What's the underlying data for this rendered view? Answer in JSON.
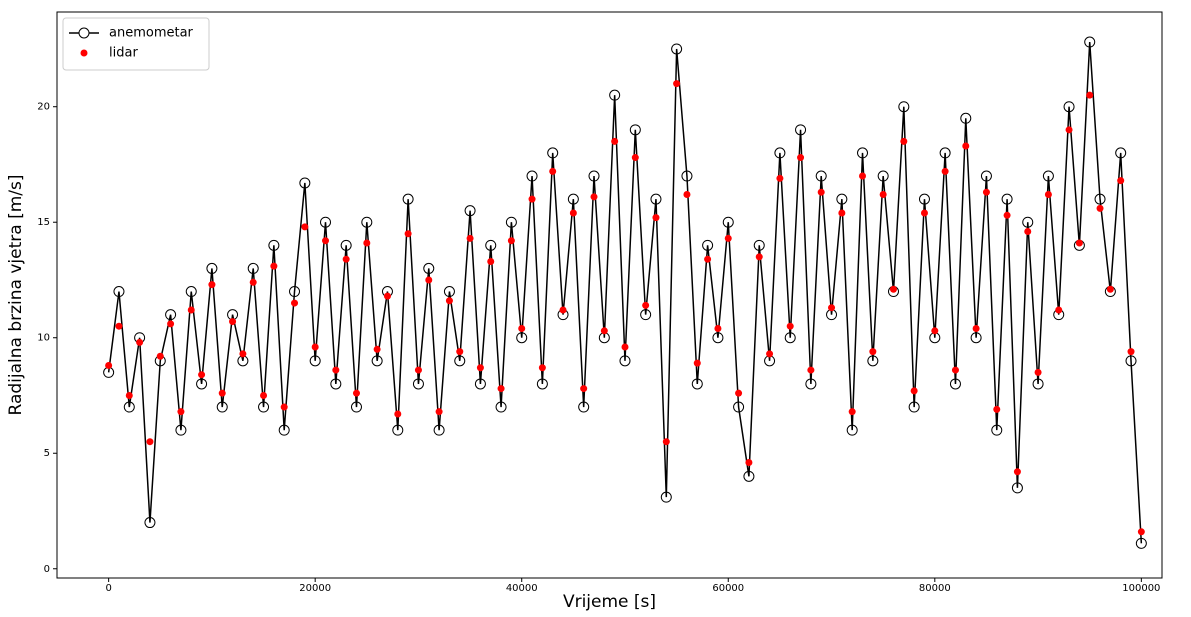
{
  "chart_data": {
    "type": "line_scatter",
    "xlabel": "Vrijeme [s]",
    "ylabel": "Radijalna brzina vjetra [m/s]",
    "xlim": [
      -5000,
      102000
    ],
    "ylim": [
      -0.4,
      24.1
    ],
    "xticks": [
      0,
      20000,
      40000,
      60000,
      80000,
      100000
    ],
    "yticks": [
      0,
      5,
      10,
      15,
      20
    ],
    "legend": "upper left",
    "x": [
      0,
      1000,
      2000,
      3000,
      4000,
      5000,
      6000,
      7000,
      8000,
      9000,
      10000,
      11000,
      12000,
      13000,
      14000,
      15000,
      16000,
      17000,
      18000,
      19000,
      20000,
      21000,
      22000,
      23000,
      24000,
      25000,
      26000,
      27000,
      28000,
      29000,
      30000,
      31000,
      32000,
      33000,
      34000,
      35000,
      36000,
      37000,
      38000,
      39000,
      40000,
      41000,
      42000,
      43000,
      44000,
      45000,
      46000,
      47000,
      48000,
      49000,
      50000,
      51000,
      52000,
      53000,
      54000,
      55000,
      56000,
      57000,
      58000,
      59000,
      60000,
      61000,
      62000,
      63000,
      64000,
      65000,
      66000,
      67000,
      68000,
      69000,
      70000,
      71000,
      72000,
      73000,
      74000,
      75000,
      76000,
      77000,
      78000,
      79000,
      80000,
      81000,
      82000,
      83000,
      84000,
      85000,
      86000,
      87000,
      88000,
      89000,
      90000,
      91000,
      92000,
      93000,
      94000,
      95000,
      96000,
      97000,
      98000,
      99000,
      100000
    ],
    "series": [
      {
        "name": "anemometar",
        "color": "#000000",
        "style": "line-open-circle",
        "values": [
          8.5,
          12,
          7,
          10,
          2,
          9,
          11,
          6,
          12,
          8,
          13,
          7,
          11,
          9,
          13,
          7,
          14,
          6,
          12,
          16.7,
          9,
          15,
          8,
          14,
          7,
          15,
          9,
          12,
          6,
          16,
          8,
          13,
          6,
          12,
          9,
          15.5,
          8,
          14,
          7,
          15,
          10,
          17,
          8,
          18,
          11,
          16,
          7,
          17,
          10,
          20.5,
          9,
          19,
          11,
          16,
          3.1,
          22.5,
          17,
          8,
          14,
          10,
          15,
          7,
          4,
          14,
          9,
          18,
          10,
          19,
          8,
          17,
          11,
          16,
          6,
          18,
          9,
          17,
          12,
          20,
          7,
          16,
          10,
          18,
          8,
          19.5,
          10,
          17,
          6,
          16,
          3.5,
          15,
          8,
          17,
          11,
          20,
          14,
          22.8,
          16,
          12,
          18,
          9,
          1.1
        ]
      },
      {
        "name": "lidar",
        "color": "#ff0000",
        "style": "dot",
        "values": [
          8.8,
          10.5,
          7.5,
          9.8,
          5.5,
          9.2,
          10.6,
          6.8,
          11.2,
          8.4,
          12.3,
          7.6,
          10.7,
          9.3,
          12.4,
          7.5,
          13.1,
          7.0,
          11.5,
          14.8,
          9.6,
          14.2,
          8.6,
          13.4,
          7.6,
          14.1,
          9.5,
          11.8,
          6.7,
          14.5,
          8.6,
          12.5,
          6.8,
          11.6,
          9.4,
          14.3,
          8.7,
          13.3,
          7.8,
          14.2,
          10.4,
          16.0,
          8.7,
          17.2,
          11.2,
          15.4,
          7.8,
          16.1,
          10.3,
          18.5,
          9.6,
          17.8,
          11.4,
          15.2,
          5.5,
          21.0,
          16.2,
          8.9,
          13.4,
          10.4,
          14.3,
          7.6,
          4.6,
          13.5,
          9.3,
          16.9,
          10.5,
          17.8,
          8.6,
          16.3,
          11.3,
          15.4,
          6.8,
          17.0,
          9.4,
          16.2,
          12.1,
          18.5,
          7.7,
          15.4,
          10.3,
          17.2,
          8.6,
          18.3,
          10.4,
          16.3,
          6.9,
          15.3,
          4.2,
          14.6,
          8.5,
          16.2,
          11.2,
          19.0,
          14.1,
          20.5,
          15.6,
          12.1,
          16.8,
          9.4,
          1.6
        ]
      }
    ]
  }
}
